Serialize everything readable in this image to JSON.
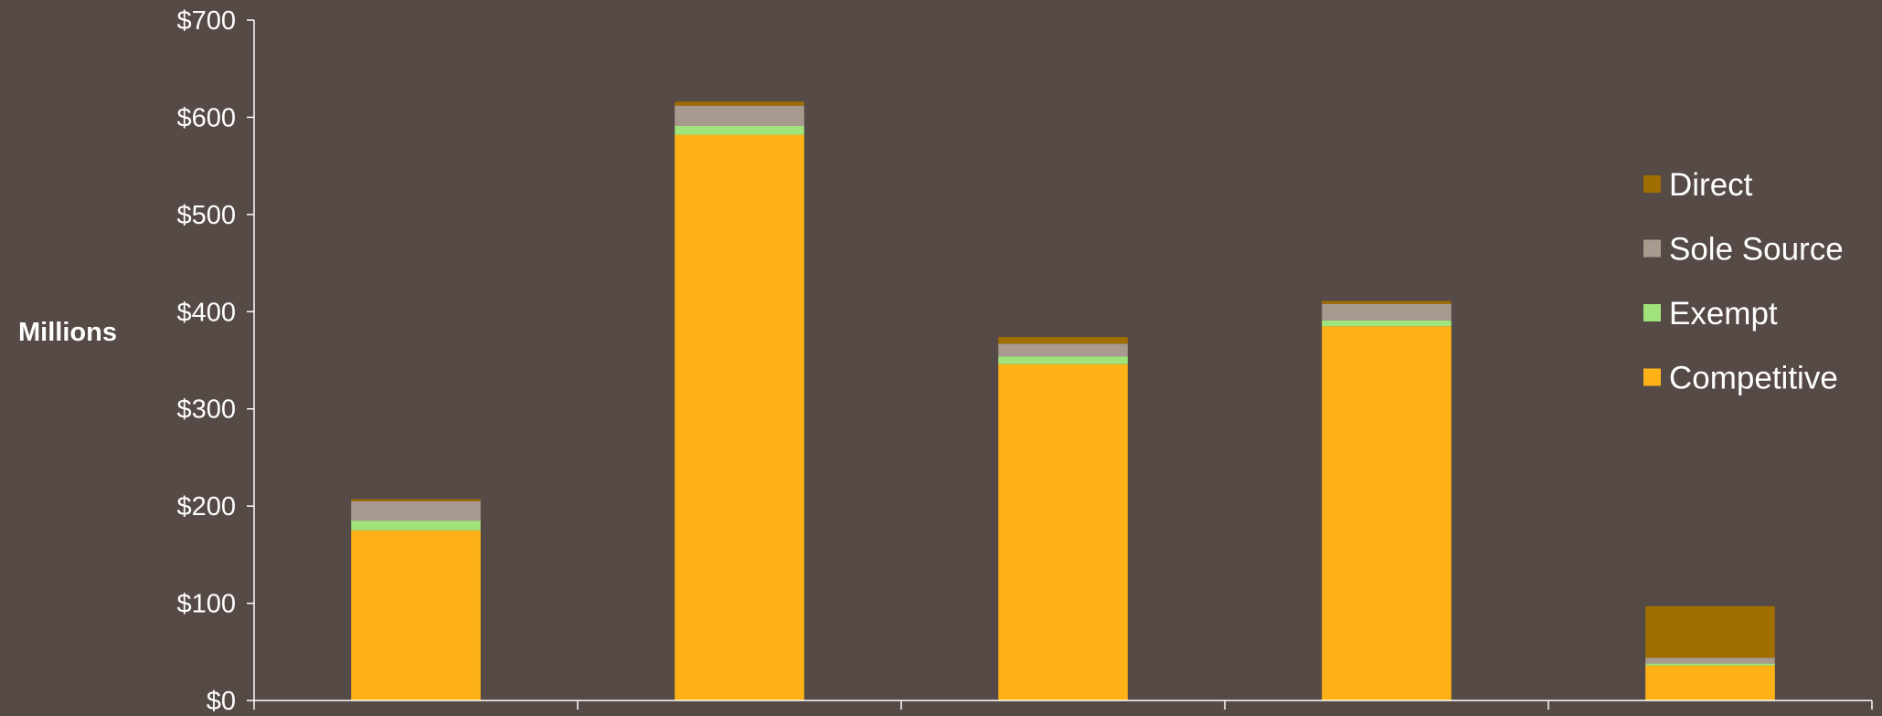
{
  "chart_data": {
    "type": "bar",
    "stacked": true,
    "ylabel": "Millions",
    "ylim": [
      0,
      700
    ],
    "yticks": [
      "$0",
      "$100",
      "$200",
      "$300",
      "$400",
      "$500",
      "$600",
      "$700"
    ],
    "y_tick_values": [
      0,
      100,
      200,
      300,
      400,
      500,
      600,
      700
    ],
    "categories": [
      "",
      "",
      "",
      "",
      ""
    ],
    "series": [
      {
        "name": "Competitive",
        "color": "#ffb217",
        "values": [
          175,
          582,
          346,
          385,
          36
        ]
      },
      {
        "name": "Exempt",
        "color": "#9fe37a",
        "values": [
          10,
          9,
          8,
          6,
          2
        ]
      },
      {
        "name": "Sole Source",
        "color": "#a89a8f",
        "values": [
          20,
          21,
          13,
          17,
          6
        ]
      },
      {
        "name": "Direct",
        "color": "#a06e00",
        "values": [
          2,
          4,
          7,
          3,
          53
        ]
      }
    ],
    "legend": {
      "position": "right",
      "order": [
        "Direct",
        "Sole Source",
        "Exempt",
        "Competitive"
      ]
    },
    "grid": false
  }
}
